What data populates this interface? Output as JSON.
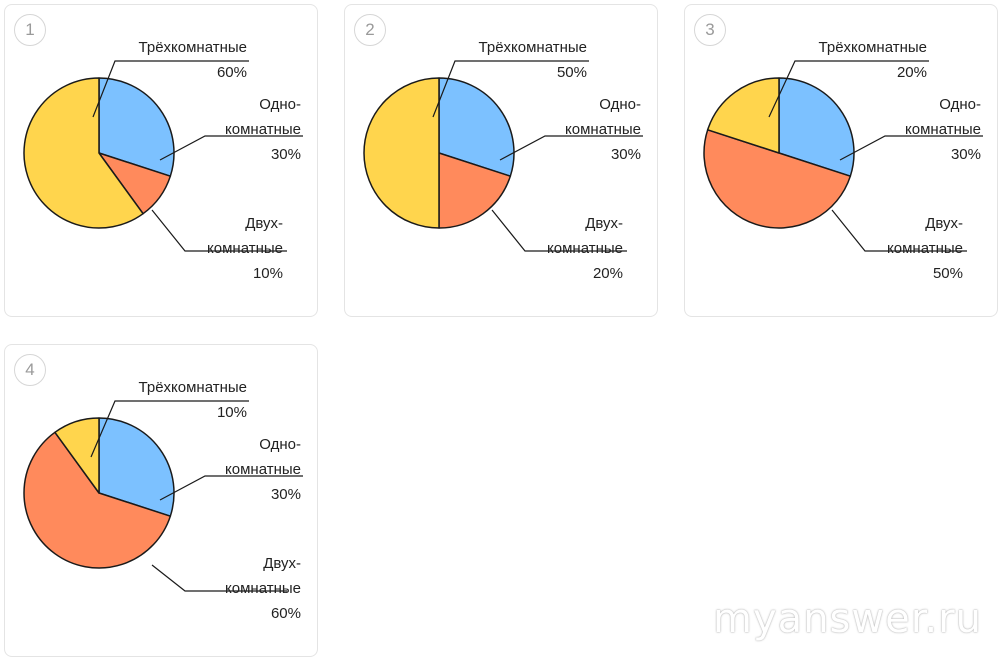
{
  "colors": {
    "one_room": "#7cc1ff",
    "two_room": "#ff8a5c",
    "three_room": "#ffd54d",
    "outline": "#1a1a1a"
  },
  "charts": [
    {
      "number": "1",
      "labels": {
        "three_title": "Трёхкомнатные",
        "three_pct": "60%",
        "one_line1": "Одно-",
        "one_line2": "комнатные",
        "one_pct": "30%",
        "two_line1": "Двух-",
        "two_line2": "комнатные",
        "two_pct": "10%"
      }
    },
    {
      "number": "2",
      "labels": {
        "three_title": "Трёхкомнатные",
        "three_pct": "50%",
        "one_line1": "Одно-",
        "one_line2": "комнатные",
        "one_pct": "30%",
        "two_line1": "Двух-",
        "two_line2": "комнатные",
        "two_pct": "20%"
      }
    },
    {
      "number": "3",
      "labels": {
        "three_title": "Трёхкомнатные",
        "three_pct": "20%",
        "one_line1": "Одно-",
        "one_line2": "комнатные",
        "one_pct": "30%",
        "two_line1": "Двух-",
        "two_line2": "комнатные",
        "two_pct": "50%"
      }
    },
    {
      "number": "4",
      "labels": {
        "three_title": "Трёхкомнатные",
        "three_pct": "10%",
        "one_line1": "Одно-",
        "one_line2": "комнатные",
        "one_pct": "30%",
        "two_line1": "Двух-",
        "two_line2": "комнатные",
        "two_pct": "60%"
      }
    }
  ],
  "chart_data": [
    {
      "type": "pie",
      "title": "1",
      "categories": [
        "Однокомнатные",
        "Двухкомнатные",
        "Трёхкомнатные"
      ],
      "values": [
        30,
        10,
        60
      ]
    },
    {
      "type": "pie",
      "title": "2",
      "categories": [
        "Однокомнатные",
        "Двухкомнатные",
        "Трёхкомнатные"
      ],
      "values": [
        30,
        20,
        50
      ]
    },
    {
      "type": "pie",
      "title": "3",
      "categories": [
        "Однокомнатные",
        "Двухкомнатные",
        "Трёхкомнатные"
      ],
      "values": [
        30,
        50,
        20
      ]
    },
    {
      "type": "pie",
      "title": "4",
      "categories": [
        "Однокомнатные",
        "Двухкомнатные",
        "Трёхкомнатные"
      ],
      "values": [
        30,
        60,
        10
      ]
    }
  ],
  "watermark": "myanswer.ru"
}
